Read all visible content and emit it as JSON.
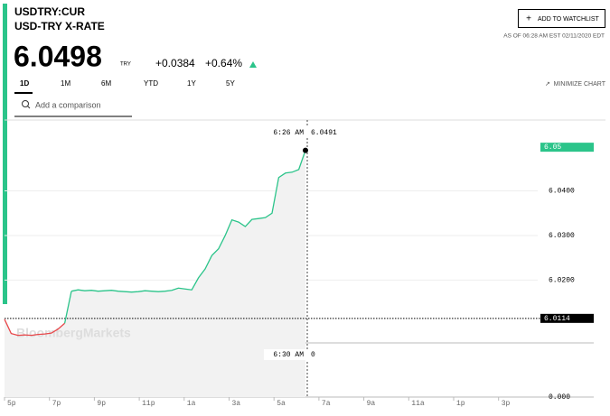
{
  "header": {
    "symbol": "USDTRY:CUR",
    "name": "USD-TRY X-RATE",
    "price": "6.0498",
    "currency": "TRY",
    "change": "+0.0384",
    "change_pct": "+0.64%",
    "watchlist": "ADD TO WATCHLIST",
    "as_of": "AS OF 06:28 AM EST 02/11/2020 EDT"
  },
  "tabs": [
    "1D",
    "1M",
    "6M",
    "YTD",
    "1Y",
    "5Y"
  ],
  "minimize": "MINIMIZE CHART",
  "comparison": "Add a comparison",
  "watermark": "BloombergMarkets",
  "chart_data": {
    "type": "line",
    "x_labels": [
      "5p",
      "7p",
      "9p",
      "11p",
      "1a",
      "3a",
      "5a",
      "7a",
      "9a",
      "11a",
      "1p",
      "3p"
    ],
    "series": [
      {
        "color": "#e8474a",
        "values": [
          6.0112,
          6.008,
          6.0076,
          6.0077,
          6.0076,
          6.0078,
          6.0079,
          6.0081,
          6.009,
          6.0103
        ]
      },
      {
        "color": "#2bc48a",
        "values": [
          6.0175,
          6.0178,
          6.0176,
          6.0177,
          6.0175,
          6.0176,
          6.0177,
          6.0175,
          6.0174,
          6.0173,
          6.0174,
          6.0176,
          6.0175,
          6.0174,
          6.0175,
          6.0177,
          6.0182,
          6.018,
          6.0178,
          6.0205,
          6.0225,
          6.0255,
          6.027,
          6.03,
          6.0335,
          6.033,
          6.032,
          6.0336,
          6.0338,
          6.034,
          6.035,
          6.043,
          6.044,
          6.0442,
          6.0448,
          6.0491
        ]
      }
    ],
    "ylim": [
      6.0059,
      6.0559
    ],
    "yticks": [
      {
        "value": 6.04,
        "label": "6.0400"
      },
      {
        "value": 6.03,
        "label": "6.0300"
      },
      {
        "value": 6.02,
        "label": "6.0200"
      }
    ],
    "prev_close": 6.0114,
    "current": {
      "value": 6.0498,
      "label": "6.05"
    },
    "cursor": {
      "time": "6:26 AM",
      "value": 6.0491
    },
    "volume_cursor": {
      "time": "6:30 AM",
      "value": 0
    },
    "y2ticks": [
      {
        "value": 0,
        "label": "0.000"
      }
    ],
    "grid": true
  }
}
